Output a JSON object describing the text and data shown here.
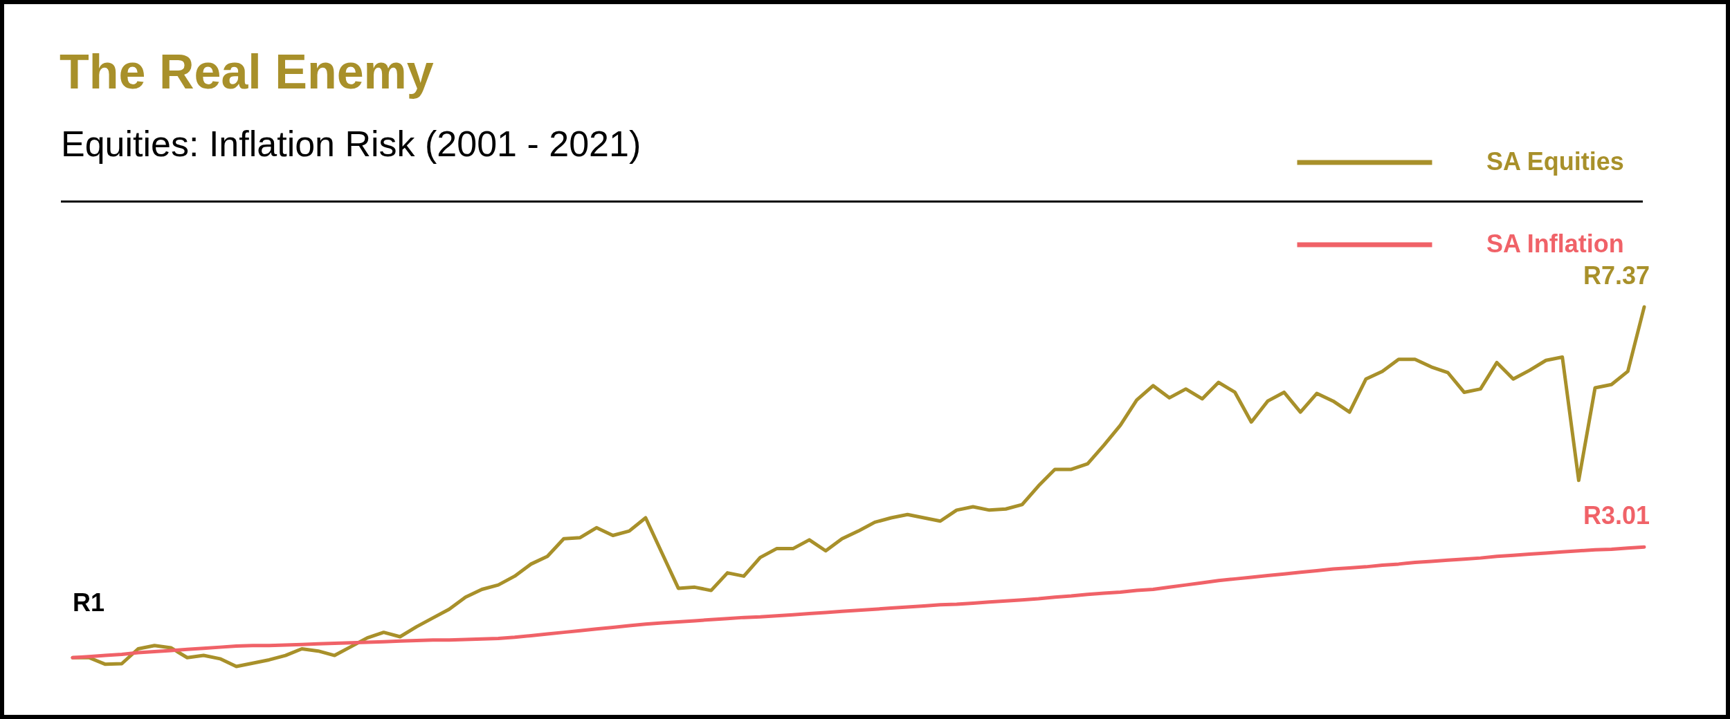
{
  "chart_data": {
    "type": "line",
    "title": "The Real Enemy",
    "subtitle": "Equities: Inflation Risk (2001 - 2021)",
    "categories": [
      null,
      null,
      null,
      null,
      null,
      null,
      null,
      null,
      null,
      null,
      null,
      null,
      null,
      null,
      null,
      null,
      null,
      null,
      null,
      null,
      null,
      null,
      null,
      null,
      null,
      null,
      null,
      null,
      null,
      null,
      null,
      null,
      null,
      null,
      null,
      null,
      null,
      null,
      null,
      null,
      null,
      null,
      null,
      null,
      null,
      null,
      null,
      null,
      null,
      null,
      null,
      null,
      null,
      null,
      null,
      null,
      null,
      null,
      null,
      null,
      null,
      null,
      null,
      null,
      null,
      null,
      null,
      null,
      null,
      null,
      null,
      null,
      null,
      null,
      null,
      null,
      null,
      null,
      null,
      null,
      null,
      null,
      null,
      null,
      null,
      null,
      null,
      null,
      null,
      null,
      null,
      null,
      null,
      null,
      null,
      null,
      null
    ],
    "legend": "top right",
    "line_style": "solid",
    "series": [
      {
        "name": "SA Equities",
        "color": "#a8902a",
        "values": [
          1.0,
          1.0,
          0.88,
          0.89,
          1.16,
          1.22,
          1.18,
          1.0,
          1.04,
          0.98,
          0.84,
          0.9,
          0.96,
          1.04,
          1.16,
          1.12,
          1.04,
          1.2,
          1.36,
          1.46,
          1.38,
          1.56,
          1.72,
          1.88,
          2.1,
          2.24,
          2.32,
          2.48,
          2.7,
          2.84,
          3.16,
          3.18,
          3.36,
          3.22,
          3.3,
          3.54,
          2.9,
          2.26,
          2.28,
          2.22,
          2.54,
          2.48,
          2.82,
          2.98,
          2.98,
          3.14,
          2.94,
          3.16,
          3.3,
          3.46,
          3.54,
          3.6,
          3.54,
          3.48,
          3.68,
          3.74,
          3.68,
          3.7,
          3.78,
          4.12,
          4.42,
          4.42,
          4.52,
          4.86,
          5.22,
          5.68,
          5.94,
          5.72,
          5.88,
          5.7,
          6.0,
          5.82,
          5.28,
          5.66,
          5.82,
          5.46,
          5.8,
          5.66,
          5.46,
          6.06,
          6.2,
          6.42,
          6.42,
          6.28,
          6.18,
          5.82,
          5.88,
          6.36,
          6.06,
          6.22,
          6.4,
          6.46,
          4.22,
          5.9,
          5.96,
          6.2,
          7.37
        ],
        "value_labels": [
          null,
          null,
          null,
          null,
          null,
          null,
          null,
          null,
          null,
          null,
          null,
          null,
          null,
          null,
          null,
          null,
          null,
          null,
          null,
          null,
          null,
          null,
          null,
          null,
          null,
          null,
          null,
          null,
          null,
          null,
          null,
          null,
          null,
          null,
          null,
          null,
          null,
          null,
          null,
          null,
          null,
          null,
          null,
          null,
          null,
          null,
          null,
          null,
          null,
          null,
          null,
          null,
          null,
          null,
          null,
          null,
          null,
          null,
          null,
          null,
          null,
          null,
          null,
          null,
          null,
          null,
          null,
          null,
          null,
          null,
          null,
          null,
          null,
          null,
          null,
          null,
          null,
          null,
          null,
          null,
          null,
          null,
          null,
          null,
          null,
          null,
          null,
          null,
          null,
          null,
          null,
          null,
          null,
          null,
          null,
          null,
          "R7.37"
        ]
      },
      {
        "name": "SA Inflation",
        "color": "#f06268",
        "values": [
          1.0,
          1.02,
          1.04,
          1.06,
          1.09,
          1.11,
          1.13,
          1.15,
          1.17,
          1.19,
          1.21,
          1.22,
          1.22,
          1.23,
          1.24,
          1.25,
          1.26,
          1.27,
          1.28,
          1.29,
          1.3,
          1.31,
          1.32,
          1.32,
          1.33,
          1.34,
          1.35,
          1.37,
          1.4,
          1.43,
          1.46,
          1.49,
          1.52,
          1.55,
          1.58,
          1.61,
          1.63,
          1.65,
          1.67,
          1.69,
          1.71,
          1.73,
          1.74,
          1.76,
          1.78,
          1.8,
          1.82,
          1.84,
          1.86,
          1.88,
          1.9,
          1.92,
          1.94,
          1.96,
          1.97,
          1.99,
          2.01,
          2.03,
          2.05,
          2.07,
          2.1,
          2.12,
          2.15,
          2.17,
          2.19,
          2.22,
          2.24,
          2.28,
          2.32,
          2.36,
          2.4,
          2.43,
          2.46,
          2.49,
          2.52,
          2.55,
          2.58,
          2.61,
          2.63,
          2.65,
          2.68,
          2.7,
          2.73,
          2.75,
          2.77,
          2.79,
          2.81,
          2.84,
          2.86,
          2.88,
          2.9,
          2.92,
          2.94,
          2.96,
          2.97,
          2.99,
          3.01
        ],
        "value_labels": [
          null,
          null,
          null,
          null,
          null,
          null,
          null,
          null,
          null,
          null,
          null,
          null,
          null,
          null,
          null,
          null,
          null,
          null,
          null,
          null,
          null,
          null,
          null,
          null,
          null,
          null,
          null,
          null,
          null,
          null,
          null,
          null,
          null,
          null,
          null,
          null,
          null,
          null,
          null,
          null,
          null,
          null,
          null,
          null,
          null,
          null,
          null,
          null,
          null,
          null,
          null,
          null,
          null,
          null,
          null,
          null,
          null,
          null,
          null,
          null,
          null,
          null,
          null,
          null,
          null,
          null,
          null,
          null,
          null,
          null,
          null,
          null,
          null,
          null,
          null,
          null,
          null,
          null,
          null,
          null,
          null,
          null,
          null,
          null,
          null,
          null,
          null,
          null,
          null,
          null,
          null,
          null,
          null,
          null,
          null,
          null,
          "R3.01"
        ]
      }
    ],
    "annotations": [
      {
        "text": "R1",
        "y": 1
      }
    ]
  }
}
